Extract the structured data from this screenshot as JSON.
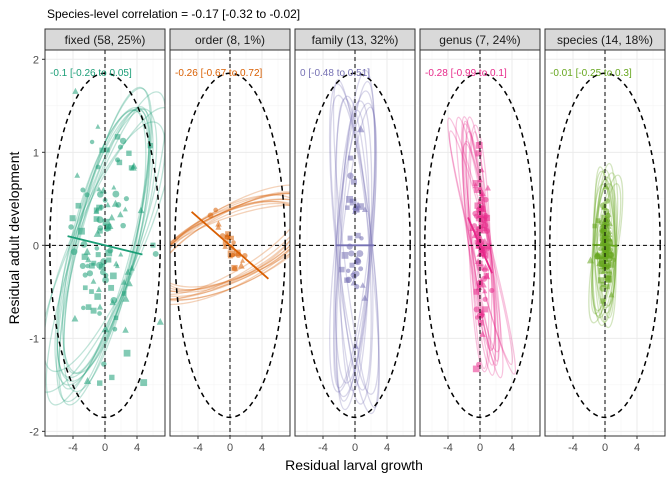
{
  "chart_data": {
    "type": "scatter",
    "title": "Species-level correlation = -0.17 [-0.32 to -0.02]",
    "xlabel": "Residual larval growth",
    "ylabel": "Residual adult development",
    "xlim": [
      -7.5,
      7.5
    ],
    "ylim": [
      -2.05,
      2.1
    ],
    "x_ticks": [
      -4,
      0,
      4
    ],
    "y_ticks": [
      -2,
      -1,
      0,
      1,
      2
    ],
    "grid": true,
    "reference_ellipse": {
      "rx": 6.9,
      "ry": 1.85,
      "style": "dashed"
    },
    "panels": [
      {
        "label": "fixed (58, 25%)",
        "correlation": "-0.1 [-0.26 to 0.05]",
        "color": "#1b9e77",
        "ellipse_rx": 3.9,
        "ellipse_ry": 1.62,
        "slope": -0.021,
        "n_points": 110,
        "point_sd_x": 2.4,
        "point_sd_y": 0.62
      },
      {
        "label": "order (8, 1%)",
        "correlation": "-0.26 [-0.67 to 0.72]",
        "color": "#d95f02",
        "ellipse_rx": 4.0,
        "ellipse_ry": 0.95,
        "slope": -0.075,
        "n_points": 24,
        "point_sd_x": 0.7,
        "point_sd_y": 0.12
      },
      {
        "label": "family (13, 32%)",
        "correlation": "0 [-0.48 to 0.51]",
        "color": "#7570b3",
        "ellipse_rx": 2.0,
        "ellipse_ry": 1.7,
        "slope": 0.0,
        "n_points": 40,
        "point_sd_x": 0.7,
        "point_sd_y": 0.45
      },
      {
        "label": "genus (7, 24%)",
        "correlation": "-0.28 [-0.99 to 0.1]",
        "color": "#e7298a",
        "ellipse_rx": 1.25,
        "ellipse_ry": 1.3,
        "slope": -0.2,
        "n_points": 95,
        "point_sd_x": 0.45,
        "point_sd_y": 0.5
      },
      {
        "label": "species (14, 18%)",
        "correlation": "-0.01 [-0.25 to 0.3]",
        "color": "#66a61e",
        "ellipse_rx": 1.3,
        "ellipse_ry": 0.77,
        "slope": -0.004,
        "n_points": 120,
        "point_sd_x": 0.45,
        "point_sd_y": 0.2
      }
    ]
  }
}
